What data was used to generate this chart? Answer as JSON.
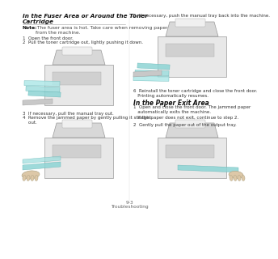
{
  "bg_color": "#ffffff",
  "title1_line1": "In the Fuser Area or Around the Toner",
  "title1_line2": "Cartridge",
  "note_bold": "Note:",
  "note_rest": " The fuser area is hot. Take care when removing paper\nfrom the machine.",
  "steps_col1_top": [
    "1  Open the front door.",
    "2  Pull the toner cartridge out, lightly pushing it down."
  ],
  "steps_col1_bot": [
    "3  If necessary, pull the manual tray out.",
    "4  Remove the jammed paper by gently pulling it straight\n    out."
  ],
  "step5": "5  If necessary, push the manual tray back into the machine.",
  "step6": "6  Reinstall the toner cartridge and close the front door.\n   Printing automatically resumes.",
  "title2": "In the Paper Exit Area",
  "steps_col2_bot": [
    "1  Open and close the front door. The jammed paper\n   automatically exits the machine.\n   If the paper does not exit, continue to step 2.",
    "2  Gently pull the paper out of the output tray."
  ],
  "footer_line1": "9-3",
  "footer_line2": "Troubleshooting"
}
